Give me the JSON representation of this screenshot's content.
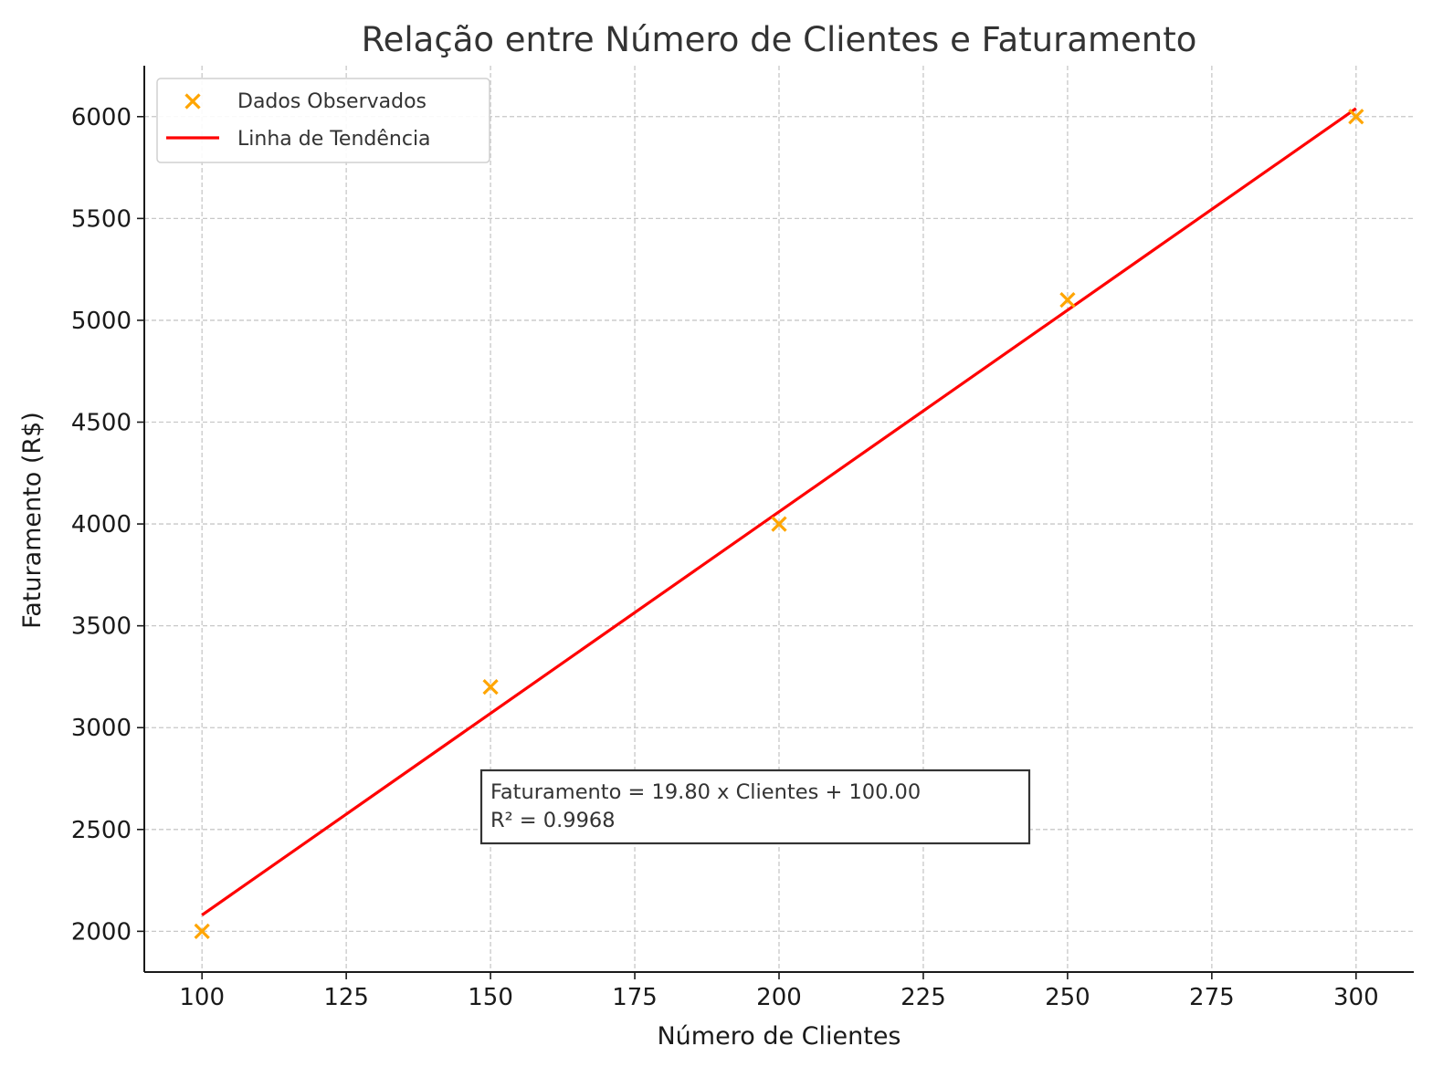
{
  "chart_data": {
    "type": "scatter",
    "title": "Relação entre Número de Clientes e Faturamento",
    "xlabel": "Número de Clientes",
    "ylabel": "Faturamento (R$)",
    "xlim": [
      90,
      310
    ],
    "ylim": [
      1800,
      6250
    ],
    "xticks": [
      100,
      125,
      150,
      175,
      200,
      225,
      250,
      275,
      300
    ],
    "yticks": [
      2000,
      2500,
      3000,
      3500,
      4000,
      4500,
      5000,
      5500,
      6000
    ],
    "grid": true,
    "legend_position": "top-left",
    "series": [
      {
        "name": "Dados Observados",
        "kind": "scatter",
        "marker": "x",
        "color": "#FFA500",
        "x": [
          100,
          150,
          200,
          250,
          300
        ],
        "y": [
          2000,
          3200,
          4000,
          5100,
          6000
        ]
      },
      {
        "name": "Linha de Tendência",
        "kind": "line",
        "color": "#FF0000",
        "slope": 19.8,
        "intercept": 100.0,
        "x": [
          100,
          300
        ]
      }
    ],
    "annotation": {
      "line1": "Faturamento = 19.80 x Clientes + 100.00",
      "line2": "R² = 0.9968"
    }
  }
}
